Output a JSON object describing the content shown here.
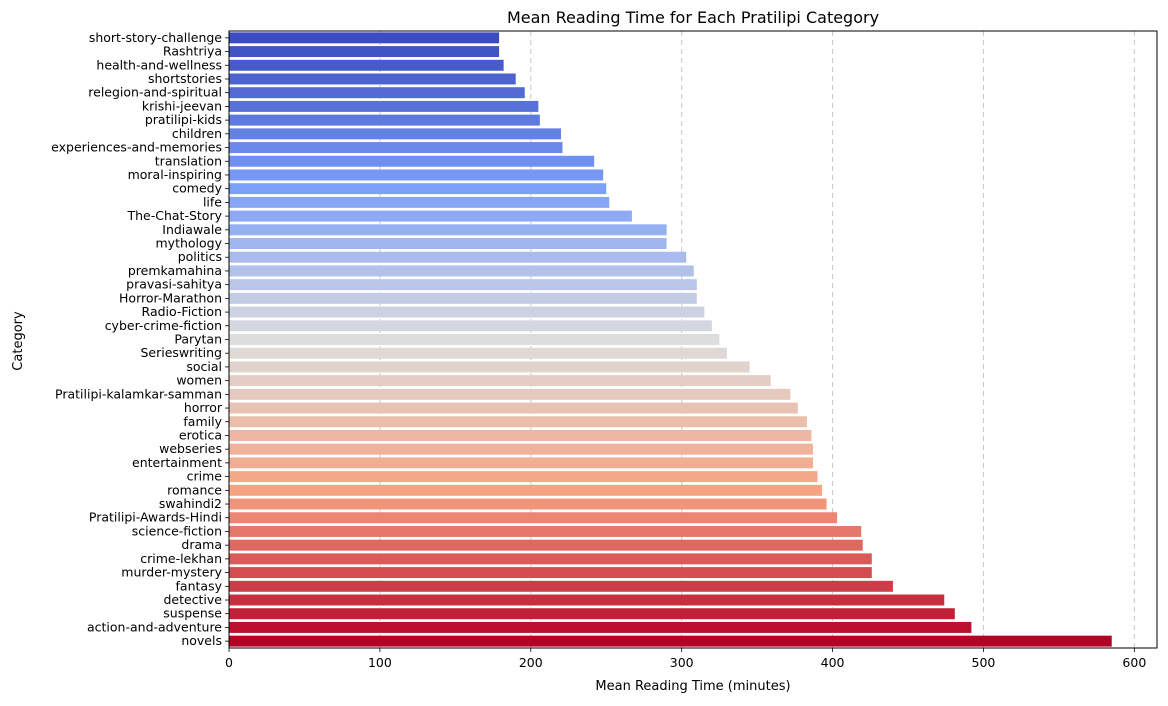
{
  "chart_data": {
    "type": "bar",
    "orientation": "horizontal",
    "title": "Mean Reading Time for Each Pratilipi Category",
    "xlabel": "Mean Reading Time (minutes)",
    "ylabel": "Category",
    "xlim": [
      0,
      615
    ],
    "xticks": [
      0,
      100,
      200,
      300,
      400,
      500,
      600
    ],
    "grid": "x-dashed",
    "colormap": "coolwarm",
    "categories": [
      "short-story-challenge",
      "Rashtriya",
      "health-and-wellness",
      "shortstories",
      "relegion-and-spiritual",
      "krishi-jeevan",
      "pratilipi-kids",
      "children",
      "experiences-and-memories",
      "translation",
      "moral-inspiring",
      "comedy",
      "life",
      "The-Chat-Story",
      "Indiawale",
      "mythology",
      "politics",
      "premkamahina",
      "pravasi-sahitya",
      "Horror-Marathon",
      "Radio-Fiction",
      "cyber-crime-fiction",
      "Parytan",
      "Serieswriting",
      "social",
      "women",
      "Pratilipi-kalamkar-samman",
      "horror",
      "family",
      "erotica",
      "webseries",
      "entertainment",
      "crime",
      "romance",
      "swahindi2",
      "Pratilipi-Awards-Hindi",
      "science-fiction",
      "drama",
      "crime-lekhan",
      "murder-mystery",
      "fantasy",
      "detective",
      "suspense",
      "action-and-adventure",
      "novels"
    ],
    "values": [
      179,
      179,
      182,
      190,
      196,
      205,
      206,
      220,
      221,
      242,
      248,
      250,
      252,
      267,
      290,
      290,
      303,
      308,
      310,
      310,
      315,
      320,
      325,
      330,
      345,
      359,
      372,
      377,
      383,
      386,
      387,
      387,
      390,
      393,
      396,
      403,
      419,
      420,
      426,
      426,
      440,
      474,
      481,
      492,
      585
    ]
  }
}
